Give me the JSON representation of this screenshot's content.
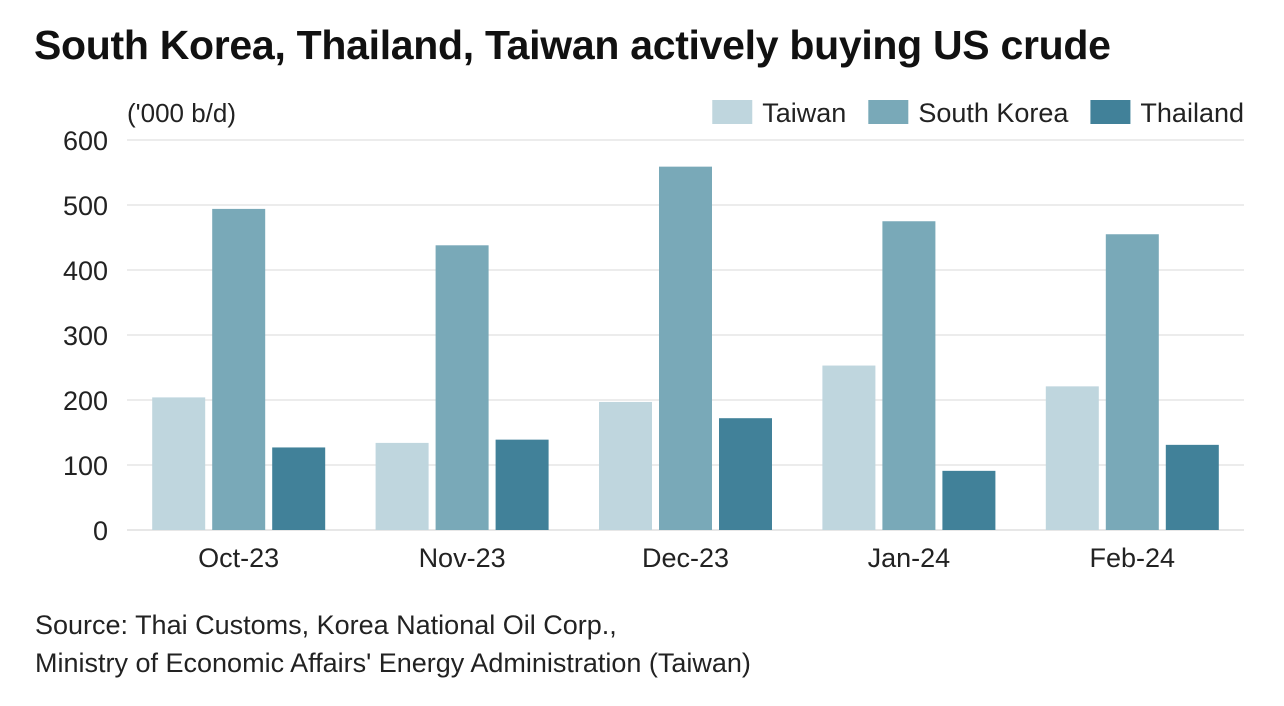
{
  "title": "South Korea, Thailand, Taiwan actively buying US crude",
  "source": {
    "line1": "Source: Thai Customs, Korea National Oil Corp.,",
    "line2": "Ministry of Economic Affairs' Energy Administration (Taiwan)"
  },
  "chart_data": {
    "type": "bar",
    "title": "South Korea, Thailand, Taiwan actively buying US crude",
    "ylabel": "('000 b/d)",
    "xlabel": "",
    "categories": [
      "Oct-23",
      "Nov-23",
      "Dec-23",
      "Jan-24",
      "Feb-24"
    ],
    "ylim": [
      0,
      600
    ],
    "yticks": [
      0,
      100,
      200,
      300,
      400,
      500,
      600
    ],
    "grid": true,
    "legend_position": "top-right",
    "series": [
      {
        "name": "Taiwan",
        "color": "#bfd6de",
        "values": [
          204,
          134,
          197,
          253,
          221
        ]
      },
      {
        "name": "South Korea",
        "color": "#79a9b8",
        "values": [
          494,
          438,
          559,
          475,
          455
        ]
      },
      {
        "name": "Thailand",
        "color": "#418199",
        "values": [
          127,
          139,
          172,
          91,
          131
        ]
      }
    ],
    "gridline_color": "#d9d9d9"
  }
}
